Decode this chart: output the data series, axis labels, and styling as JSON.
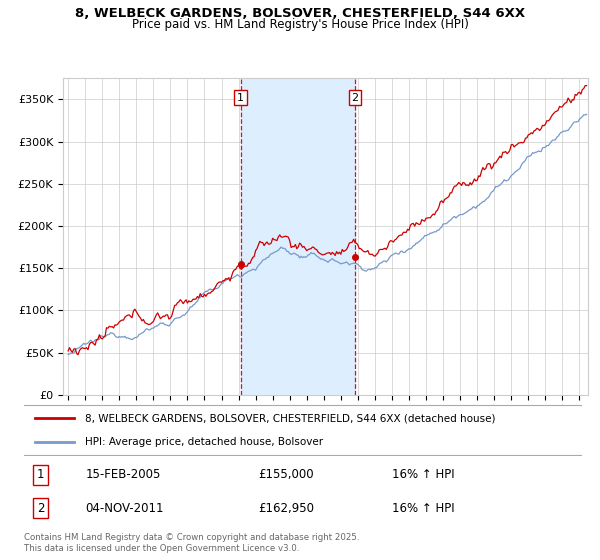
{
  "title_line1": "8, WELBECK GARDENS, BOLSOVER, CHESTERFIELD, S44 6XX",
  "title_line2": "Price paid vs. HM Land Registry's House Price Index (HPI)",
  "ylabel_ticks": [
    "£0",
    "£50K",
    "£100K",
    "£150K",
    "£200K",
    "£250K",
    "£300K",
    "£350K"
  ],
  "ytick_values": [
    0,
    50000,
    100000,
    150000,
    200000,
    250000,
    300000,
    350000
  ],
  "ylim": [
    0,
    375000
  ],
  "xlim_start": 1994.7,
  "xlim_end": 2025.5,
  "sale1": {
    "label": "1",
    "date": "15-FEB-2005",
    "price": 155000,
    "hpi_change": "16% ↑ HPI",
    "x": 2005.12
  },
  "sale2": {
    "label": "2",
    "date": "04-NOV-2011",
    "price": 162950,
    "hpi_change": "16% ↑ HPI",
    "x": 2011.84
  },
  "legend_line1": "8, WELBECK GARDENS, BOLSOVER, CHESTERFIELD, S44 6XX (detached house)",
  "legend_line2": "HPI: Average price, detached house, Bolsover",
  "footer": "Contains HM Land Registry data © Crown copyright and database right 2025.\nThis data is licensed under the Open Government Licence v3.0.",
  "line_color_red": "#cc0000",
  "line_color_blue": "#7799cc",
  "shade_color": "#ddeeff",
  "vline_color": "#cc0000",
  "grid_color": "#cccccc",
  "background_color": "#ffffff"
}
